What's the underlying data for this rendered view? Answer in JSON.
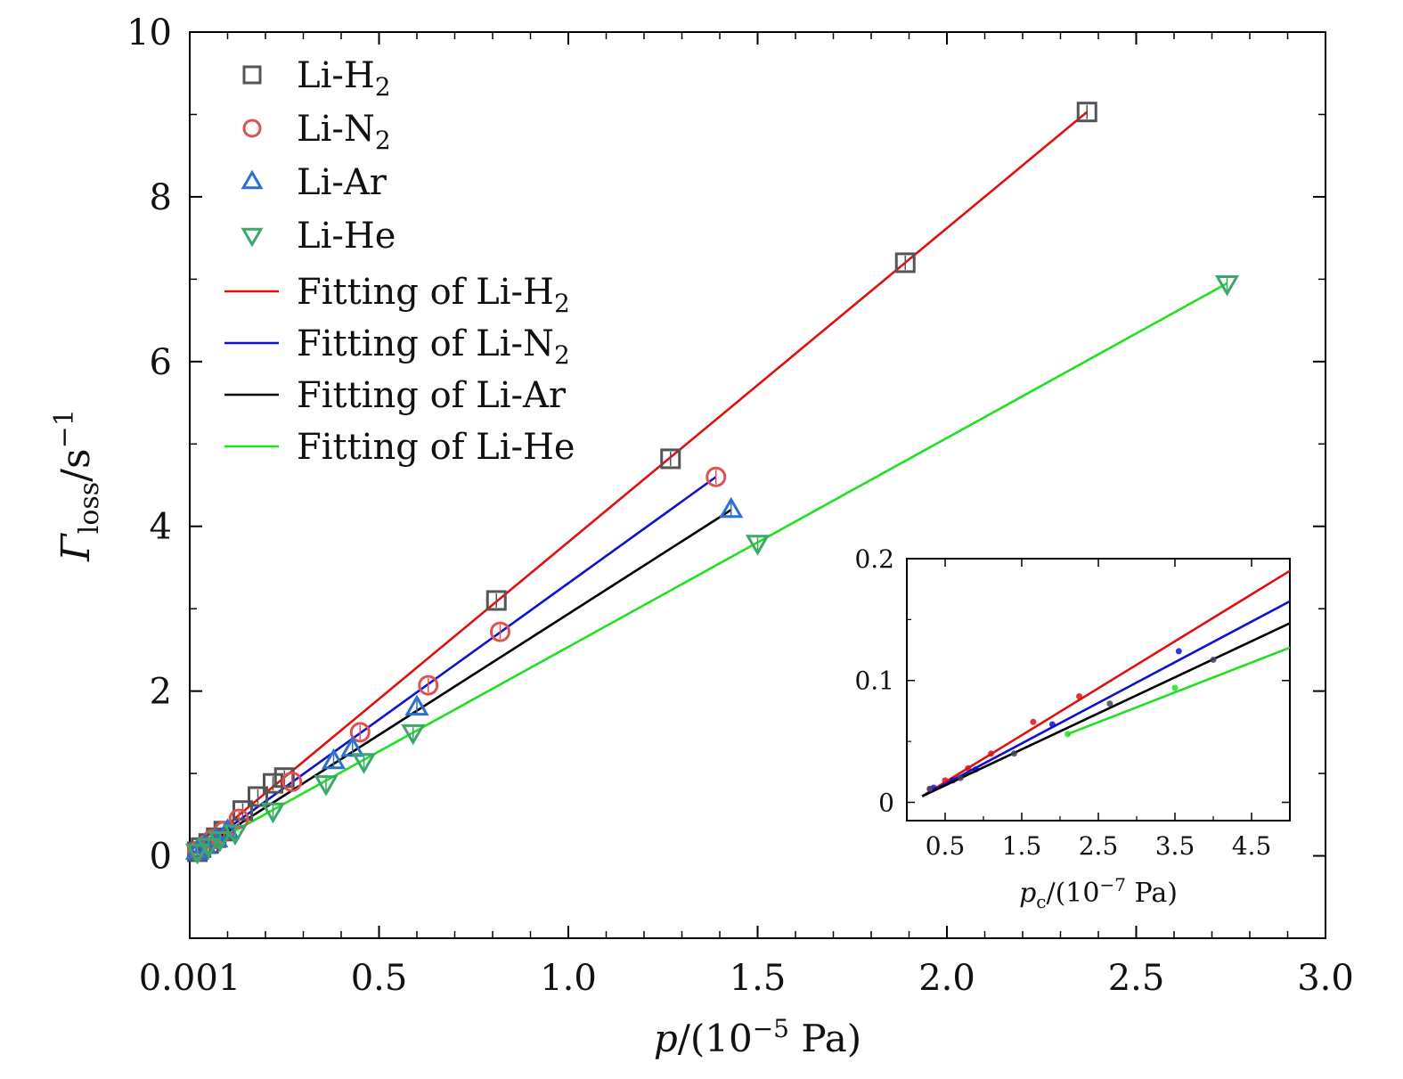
{
  "chart_data": [
    {
      "type": "scatter",
      "panel": "main",
      "xlabel_main": "p",
      "xlabel_unit": "/(10",
      "xlabel_exp": "−5",
      "xlabel_tail": " Pa)",
      "ylabel_main": "Γ",
      "ylabel_sub": "loss",
      "ylabel_unit": "/s",
      "ylabel_exp": "−1",
      "xlim": [
        0,
        3.0
      ],
      "ylim": [
        -1,
        10
      ],
      "xticks": [
        0,
        0.5,
        1.0,
        1.5,
        2.0,
        2.5,
        3.0
      ],
      "xtick_labels": [
        "0.001",
        "0.5",
        "1.0",
        "1.5",
        "2.0",
        "2.5",
        "3.0"
      ],
      "yticks": [
        0,
        2,
        4,
        6,
        8,
        10
      ],
      "ytick_labels": [
        "0",
        "2",
        "4",
        "6",
        "8",
        "10"
      ],
      "legend_position": "top-left",
      "series": [
        {
          "name": "Li-H",
          "sub": "2",
          "marker": "square",
          "color": "#555555",
          "x": [
            0.02,
            0.03,
            0.05,
            0.07,
            0.09,
            0.14,
            0.18,
            0.22,
            0.25,
            0.81,
            1.27,
            1.89,
            2.37
          ],
          "y": [
            0.05,
            0.1,
            0.15,
            0.22,
            0.3,
            0.55,
            0.72,
            0.88,
            0.95,
            3.1,
            4.82,
            7.2,
            9.03
          ]
        },
        {
          "name": "Li-N",
          "sub": "2",
          "marker": "circle",
          "color": "#e05050",
          "x": [
            0.02,
            0.04,
            0.06,
            0.09,
            0.13,
            0.27,
            0.45,
            0.63,
            0.82,
            1.39
          ],
          "y": [
            0.06,
            0.12,
            0.2,
            0.3,
            0.45,
            0.9,
            1.5,
            2.07,
            2.72,
            4.6
          ]
        },
        {
          "name": "Li-Ar",
          "sub": "",
          "marker": "triangle-up",
          "color": "#2a70d0",
          "x": [
            0.02,
            0.04,
            0.07,
            0.1,
            0.38,
            0.43,
            0.6,
            1.43
          ],
          "y": [
            0.05,
            0.12,
            0.2,
            0.3,
            1.15,
            1.3,
            1.8,
            4.2
          ]
        },
        {
          "name": "Li-He",
          "sub": "",
          "marker": "triangle-down",
          "color": "#3aa868",
          "x": [
            0.02,
            0.05,
            0.08,
            0.12,
            0.22,
            0.36,
            0.46,
            0.59,
            1.5,
            2.74
          ],
          "y": [
            0.05,
            0.12,
            0.2,
            0.28,
            0.55,
            0.88,
            1.15,
            1.5,
            3.8,
            6.95
          ]
        }
      ],
      "fits": [
        {
          "name": "Fitting of Li-H",
          "sub": "2",
          "color": "#e01010",
          "x": [
            0,
            2.37
          ],
          "y": [
            0,
            9.03
          ]
        },
        {
          "name": "Fitting of Li-N",
          "sub": "2",
          "color": "#1010d0",
          "x": [
            0,
            1.39
          ],
          "y": [
            0,
            4.6
          ]
        },
        {
          "name": "Fitting of Li-Ar",
          "sub": "",
          "color": "#000000",
          "x": [
            0,
            1.43
          ],
          "y": [
            0,
            4.2
          ]
        },
        {
          "name": "Fitting of Li-He",
          "sub": "",
          "color": "#20e020",
          "x": [
            0,
            2.74
          ],
          "y": [
            0,
            6.95
          ]
        }
      ]
    },
    {
      "type": "line",
      "panel": "inset",
      "xlabel_main": "p",
      "xlabel_sub": "c",
      "xlabel_unit": "/(10",
      "xlabel_exp": "−7",
      "xlabel_tail": " Pa)",
      "xlim": [
        0,
        5.0
      ],
      "ylim": [
        -0.015,
        0.2
      ],
      "xticks": [
        0.5,
        1.5,
        2.5,
        3.5,
        4.5
      ],
      "xtick_labels": [
        "0.5",
        "1.5",
        "2.5",
        "3.5",
        "4.5"
      ],
      "yticks": [
        0,
        0.1,
        0.2
      ],
      "ytick_labels": [
        "0",
        "0.1",
        "0.2"
      ],
      "series": [
        {
          "name": "Li-H2",
          "color": "#e01010",
          "x": [
            0.2,
            5.0
          ],
          "y": [
            0.005,
            0.19
          ],
          "points_x": [
            0.3,
            0.5,
            0.8,
            1.1,
            1.65,
            2.25
          ],
          "points_y": [
            0.011,
            0.018,
            0.028,
            0.04,
            0.066,
            0.087
          ]
        },
        {
          "name": "Li-N2",
          "color": "#1010d0",
          "x": [
            0.2,
            5.0
          ],
          "y": [
            0.005,
            0.165
          ],
          "points_x": [
            0.35,
            0.6,
            0.9,
            1.9,
            3.55
          ],
          "points_y": [
            0.012,
            0.018,
            0.027,
            0.064,
            0.124
          ]
        },
        {
          "name": "Li-Ar",
          "color": "#000000",
          "x": [
            0.2,
            5.0
          ],
          "y": [
            0.005,
            0.147
          ],
          "points_x": [
            0.3,
            0.7,
            1.4,
            2.65,
            4.0
          ],
          "points_y": [
            0.011,
            0.02,
            0.04,
            0.081,
            0.117
          ]
        },
        {
          "name": "Li-He",
          "color": "#20e020",
          "x": [
            2.1,
            5.0
          ],
          "y": [
            0.056,
            0.127
          ],
          "points_x": [
            2.1,
            3.5
          ],
          "points_y": [
            0.056,
            0.094
          ]
        }
      ]
    }
  ]
}
